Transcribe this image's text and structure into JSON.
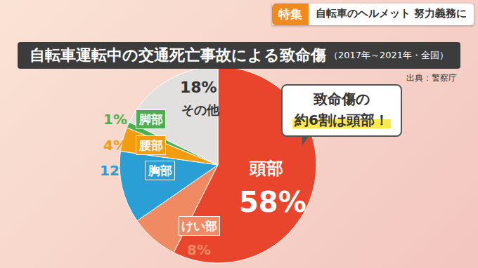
{
  "chart_data": {
    "type": "pie",
    "header": {
      "badge": "特集",
      "text": "自転車のヘルメット 努力義務に"
    },
    "title": "自転車運転中の交通死亡事故による致命傷",
    "subtitle": "（2017年～2021年・全国）",
    "source": "出典：警察庁",
    "annotations": [
      "致命傷の",
      "約6割は頭部！"
    ],
    "categories": [
      "頭部",
      "けい部",
      "胸部",
      "腰部",
      "脚部",
      "その他"
    ],
    "values": [
      58,
      8,
      12,
      4,
      1,
      18
    ],
    "value_labels": [
      "58%",
      "8%",
      "12%",
      "4%",
      "1%",
      "18%"
    ],
    "colors": [
      "#e8452c",
      "#ef8a62",
      "#2a9fd6",
      "#f39c12",
      "#4caf50",
      "#e2e0df"
    ],
    "data_labels": true
  }
}
